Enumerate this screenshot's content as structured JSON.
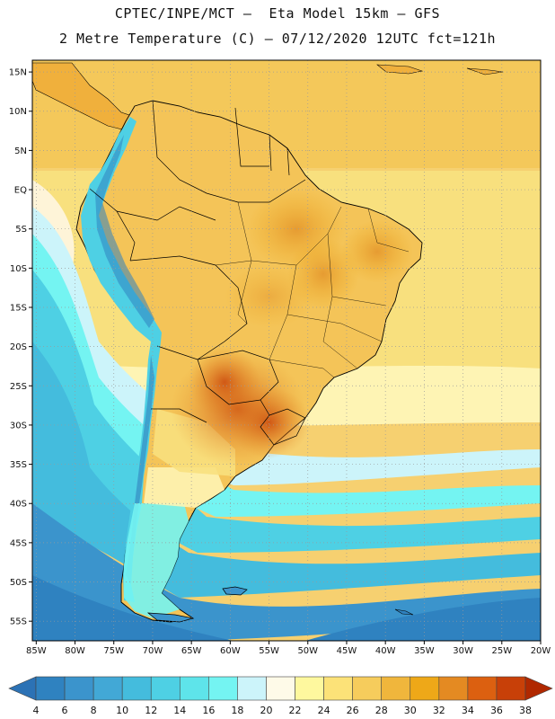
{
  "header": {
    "line1": "CPTEC/INPE/MCT –  Eta Model 15km – GFS",
    "line2": "2 Metre Temperature (C) – 07/12/2020 12UTC fct=121h"
  },
  "axes": {
    "lat_labels": [
      "15N",
      "10N",
      "5N",
      "EQ",
      "5S",
      "10S",
      "15S",
      "20S",
      "25S",
      "30S",
      "35S",
      "40S",
      "45S",
      "50S",
      "55S"
    ],
    "lat_values": [
      15,
      10,
      5,
      0,
      -5,
      -10,
      -15,
      -20,
      -25,
      -30,
      -35,
      -40,
      -45,
      -50,
      -55
    ],
    "lon_labels": [
      "85W",
      "80W",
      "75W",
      "70W",
      "65W",
      "60W",
      "55W",
      "50W",
      "45W",
      "40W",
      "35W",
      "30W",
      "25W",
      "20W"
    ],
    "lon_values": [
      -85,
      -80,
      -75,
      -70,
      -65,
      -60,
      -55,
      -50,
      -45,
      -40,
      -35,
      -30,
      -25,
      -20
    ],
    "lat_range": [
      -57.5,
      16.5
    ],
    "lon_range": [
      -85.5,
      -20
    ]
  },
  "colorbar": {
    "labels": [
      "4",
      "6",
      "8",
      "10",
      "12",
      "14",
      "16",
      "18",
      "20",
      "22",
      "24",
      "26",
      "28",
      "30",
      "32",
      "34",
      "36",
      "38"
    ],
    "values": [
      4,
      6,
      8,
      10,
      12,
      14,
      16,
      18,
      20,
      22,
      24,
      26,
      28,
      30,
      32,
      34,
      36,
      38
    ],
    "colors": [
      "#2c72b5",
      "#2f82c0",
      "#3b94cc",
      "#42a8d6",
      "#44bcdd",
      "#4ed0e4",
      "#5ee4ea",
      "#74f4f2",
      "#ccf4fa",
      "#fefae8",
      "#fef89e",
      "#fce278",
      "#f6cc5c",
      "#f0b63c",
      "#eea818",
      "#e48a22",
      "#dc6010",
      "#c84008",
      "#b02800"
    ]
  }
}
